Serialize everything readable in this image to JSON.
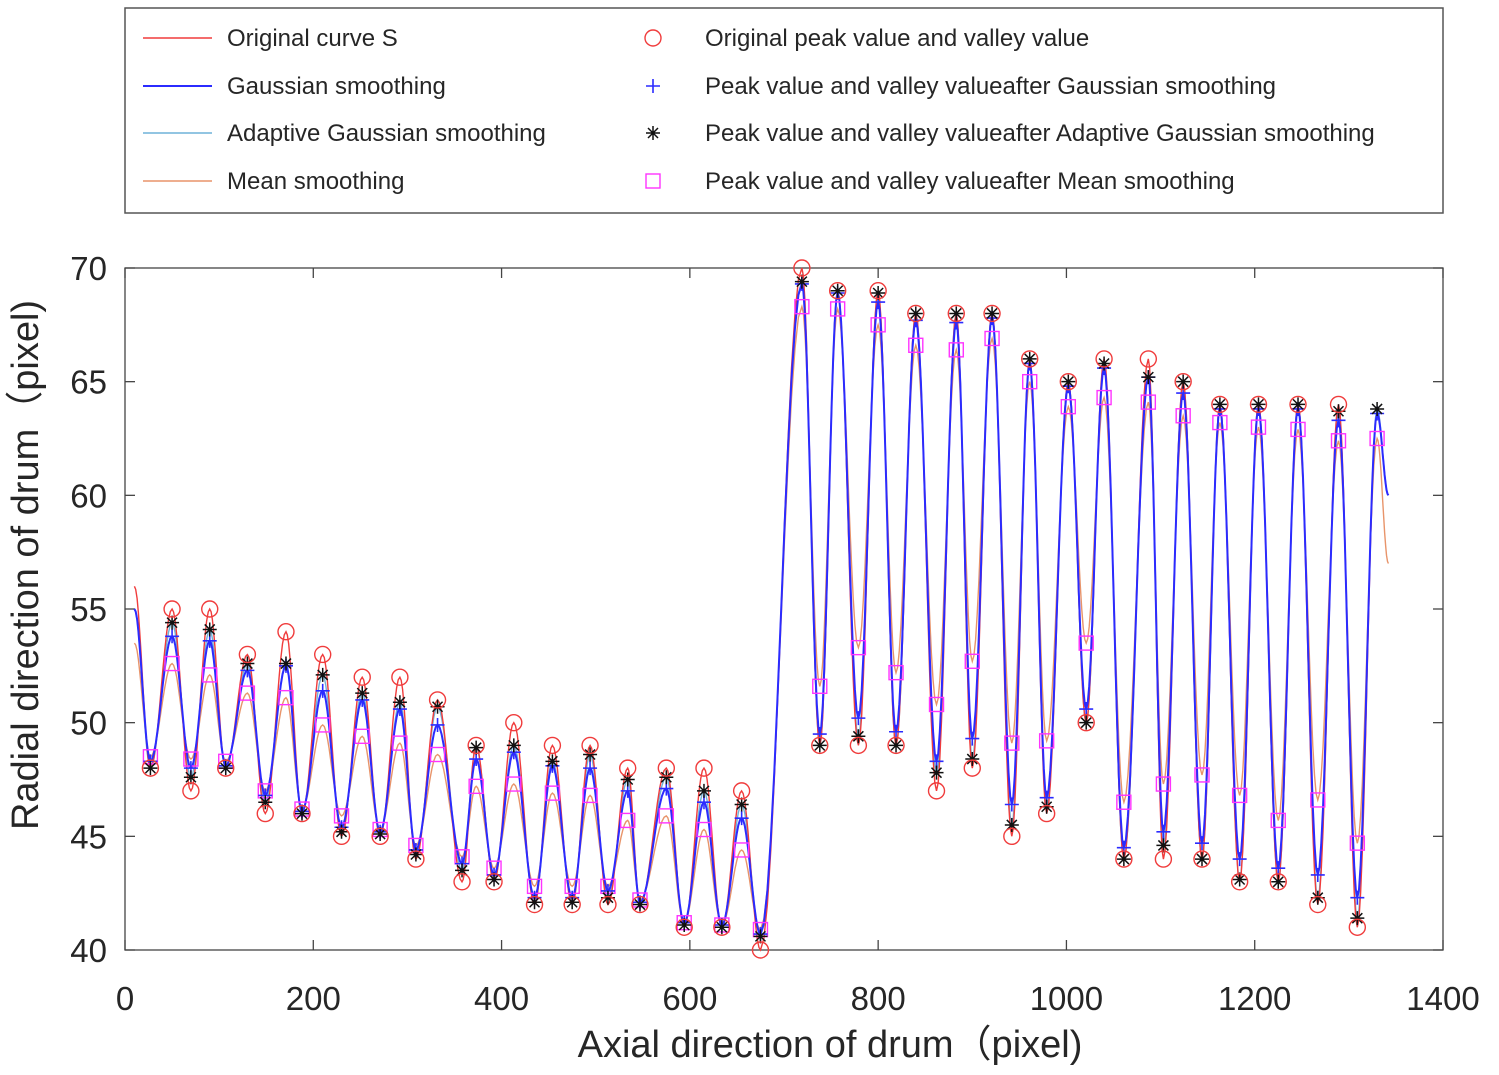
{
  "chart_data": {
    "type": "line",
    "xlabel": "Axial direction of drum（pixel)",
    "ylabel": "Radial direction of drum（pixel)",
    "xlim": [
      0,
      1400
    ],
    "ylim": [
      40,
      70
    ],
    "xticks": [
      0,
      200,
      400,
      600,
      800,
      1000,
      1200,
      1400
    ],
    "yticks": [
      40,
      45,
      50,
      55,
      60,
      65,
      70
    ],
    "grid": false,
    "legend_position": "top (above plot)",
    "legend": [
      {
        "label": "Original curve S",
        "kind": "line",
        "color": "#f03c3c"
      },
      {
        "label": "Gaussian smoothing",
        "kind": "line",
        "color": "#2b2bff"
      },
      {
        "label": "Adaptive Gaussian smoothing",
        "kind": "line",
        "color": "#6fb2d9"
      },
      {
        "label": "Mean smoothing",
        "kind": "line",
        "color": "#e8946a"
      },
      {
        "label": "Original peak value and valley value",
        "kind": "circle",
        "color": "#f03c3c"
      },
      {
        "label": "Peak value and valley valueafter Gaussian smoothing",
        "kind": "plus",
        "color": "#2b2bff"
      },
      {
        "label": "Peak value and valley valueafter Adaptive Gaussian smoothing",
        "kind": "asterisk",
        "color": "#111111"
      },
      {
        "label": "Peak value and valley valueafter Mean smoothing",
        "kind": "square",
        "color": "#ff33ff"
      }
    ],
    "curve_start": {
      "x": 10,
      "original": 56,
      "gaussian": 55,
      "adaptive": 55,
      "mean": 53.5
    },
    "curve_end": {
      "x": 1342,
      "original": 60,
      "gaussian": 60,
      "adaptive": 60,
      "mean": 57
    },
    "extrema_columns": [
      "x",
      "original",
      "gaussian",
      "adaptive",
      "mean"
    ],
    "extrema": [
      [
        27,
        48,
        48.3,
        48.0,
        48.5
      ],
      [
        50,
        55,
        53.8,
        54.4,
        52.6
      ],
      [
        70,
        47,
        48.0,
        47.6,
        48.4
      ],
      [
        90,
        55,
        53.6,
        54.1,
        52.1
      ],
      [
        107,
        48,
        48.1,
        48.0,
        48.3
      ],
      [
        130,
        53,
        52.3,
        52.6,
        51.3
      ],
      [
        149,
        46,
        46.8,
        46.5,
        47.0
      ],
      [
        171,
        54,
        52.5,
        52.6,
        51.1
      ],
      [
        188,
        46,
        46.1,
        46.0,
        46.2
      ],
      [
        210,
        53,
        51.4,
        52.1,
        49.9
      ],
      [
        230,
        45,
        45.4,
        45.2,
        45.9
      ],
      [
        252,
        52,
        51.0,
        51.3,
        49.4
      ],
      [
        271,
        45,
        45.2,
        45.1,
        45.3
      ],
      [
        292,
        52,
        50.6,
        50.9,
        49.1
      ],
      [
        309,
        44,
        44.4,
        44.2,
        44.6
      ],
      [
        332,
        51,
        49.9,
        50.7,
        48.6
      ],
      [
        358,
        43,
        43.8,
        43.5,
        44.1
      ],
      [
        373,
        49,
        48.4,
        48.9,
        47.2
      ],
      [
        392,
        43,
        43.3,
        43.1,
        43.6
      ],
      [
        413,
        50,
        48.7,
        49.0,
        47.3
      ],
      [
        435,
        42,
        42.3,
        42.1,
        42.8
      ],
      [
        454,
        49,
        48.1,
        48.3,
        46.9
      ],
      [
        475,
        42,
        42.3,
        42.1,
        42.8
      ],
      [
        494,
        49,
        48.0,
        48.6,
        46.8
      ],
      [
        513,
        42,
        42.6,
        42.3,
        42.8
      ],
      [
        534,
        48,
        47.0,
        47.5,
        45.7
      ],
      [
        547,
        42,
        42.1,
        42.0,
        42.2
      ],
      [
        575,
        48,
        47.1,
        47.6,
        45.9
      ],
      [
        594,
        41,
        41.2,
        41.1,
        41.2
      ],
      [
        615,
        48,
        46.5,
        47.0,
        45.3
      ],
      [
        634,
        41,
        41.1,
        41.0,
        41.1
      ],
      [
        655,
        47,
        45.8,
        46.4,
        44.4
      ],
      [
        675,
        40,
        40.7,
        40.6,
        40.9
      ],
      [
        719,
        70,
        69.3,
        69.4,
        68.3
      ],
      [
        738,
        49,
        49.5,
        49.0,
        51.6
      ],
      [
        757,
        69,
        68.9,
        69.0,
        68.2
      ],
      [
        779,
        49,
        50.2,
        49.4,
        53.3
      ],
      [
        800,
        69,
        68.5,
        68.9,
        67.5
      ],
      [
        819,
        49,
        49.6,
        49.0,
        52.2
      ],
      [
        840,
        68,
        67.7,
        68.0,
        66.6
      ],
      [
        862,
        47,
        48.3,
        47.8,
        50.8
      ],
      [
        883,
        68,
        67.6,
        68.0,
        66.4
      ],
      [
        900,
        48,
        49.3,
        48.4,
        52.7
      ],
      [
        921,
        68,
        67.8,
        68.0,
        66.9
      ],
      [
        942,
        45,
        46.4,
        45.5,
        49.1
      ],
      [
        961,
        66,
        65.8,
        66.0,
        65.0
      ],
      [
        979,
        46,
        46.7,
        46.3,
        49.2
      ],
      [
        1002,
        65,
        64.8,
        65.0,
        63.9
      ],
      [
        1021,
        50,
        50.6,
        50.0,
        53.5
      ],
      [
        1040,
        66,
        65.6,
        65.8,
        64.3
      ],
      [
        1061,
        44,
        44.5,
        44.0,
        46.5
      ],
      [
        1087,
        66,
        65.2,
        65.2,
        64.1
      ],
      [
        1103,
        44,
        45.2,
        44.6,
        47.3
      ],
      [
        1124,
        65,
        64.5,
        65.0,
        63.5
      ],
      [
        1144,
        44,
        44.7,
        44.0,
        47.7
      ],
      [
        1163,
        64,
        63.8,
        64.0,
        63.2
      ],
      [
        1184,
        43,
        44.0,
        43.1,
        46.8
      ],
      [
        1204,
        64,
        63.8,
        64.0,
        63.0
      ],
      [
        1225,
        43,
        43.6,
        43.0,
        45.7
      ],
      [
        1246,
        64,
        63.8,
        64.0,
        62.9
      ],
      [
        1267,
        42,
        43.3,
        42.3,
        46.6
      ],
      [
        1289,
        64,
        63.3,
        63.7,
        62.4
      ],
      [
        1309,
        41,
        42.3,
        41.4,
        44.7
      ],
      [
        1330,
        null,
        63.6,
        63.8,
        62.5
      ]
    ]
  }
}
